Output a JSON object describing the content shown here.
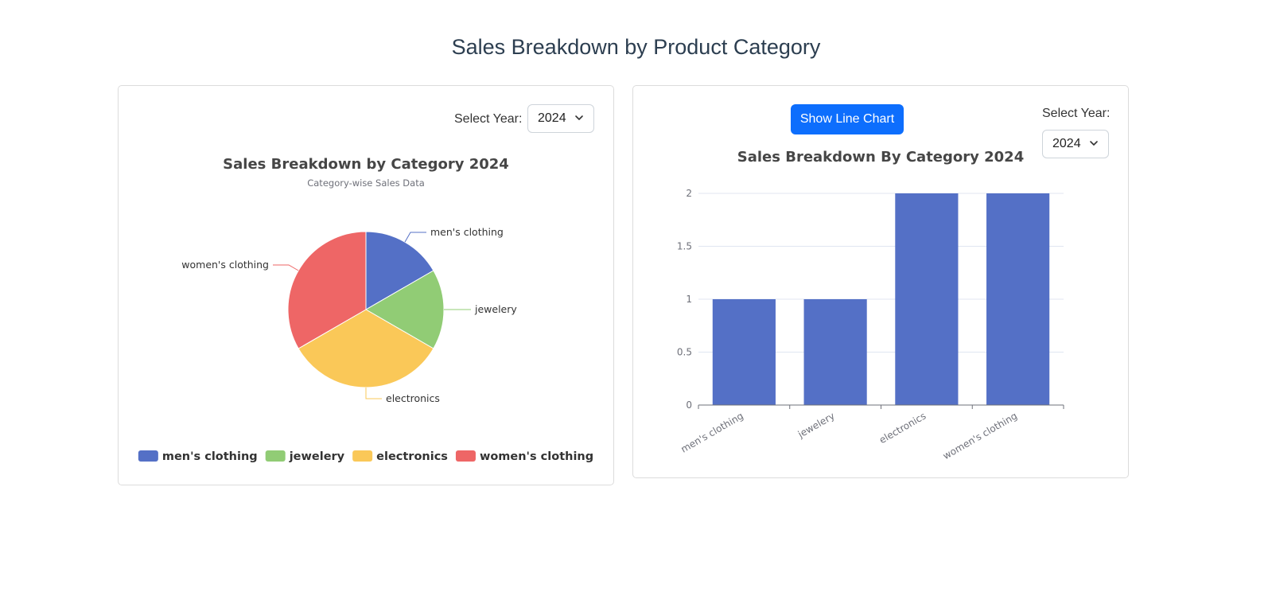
{
  "page": {
    "title": "Sales Breakdown by Product Category"
  },
  "left_panel": {
    "select_label": "Select Year:",
    "selected_year": "2024"
  },
  "right_panel": {
    "toggle_button": "Show Line Chart",
    "select_label": "Select Year:",
    "selected_year": "2024"
  },
  "colors": {
    "men's clothing": "#5470c6",
    "jewelery": "#91cc75",
    "electronics": "#fac858",
    "women's clothing": "#ee6666",
    "bar": "#5470c6"
  },
  "chart_data": [
    {
      "type": "pie",
      "title": "Sales Breakdown by Category 2024",
      "subtitle": "Category-wise Sales Data",
      "categories": [
        "men's clothing",
        "jewelery",
        "electronics",
        "women's clothing"
      ],
      "values": [
        1,
        1,
        2,
        2
      ],
      "legend": "bottom-center"
    },
    {
      "type": "bar",
      "title": "Sales Breakdown By Category 2024",
      "categories": [
        "men's clothing",
        "jewelery",
        "electronics",
        "women's clothing"
      ],
      "values": [
        1,
        1,
        2,
        2
      ],
      "ylim": [
        0,
        2
      ],
      "yticks": [
        "0",
        "0.5",
        "1",
        "1.5",
        "2"
      ],
      "grid": true
    }
  ]
}
